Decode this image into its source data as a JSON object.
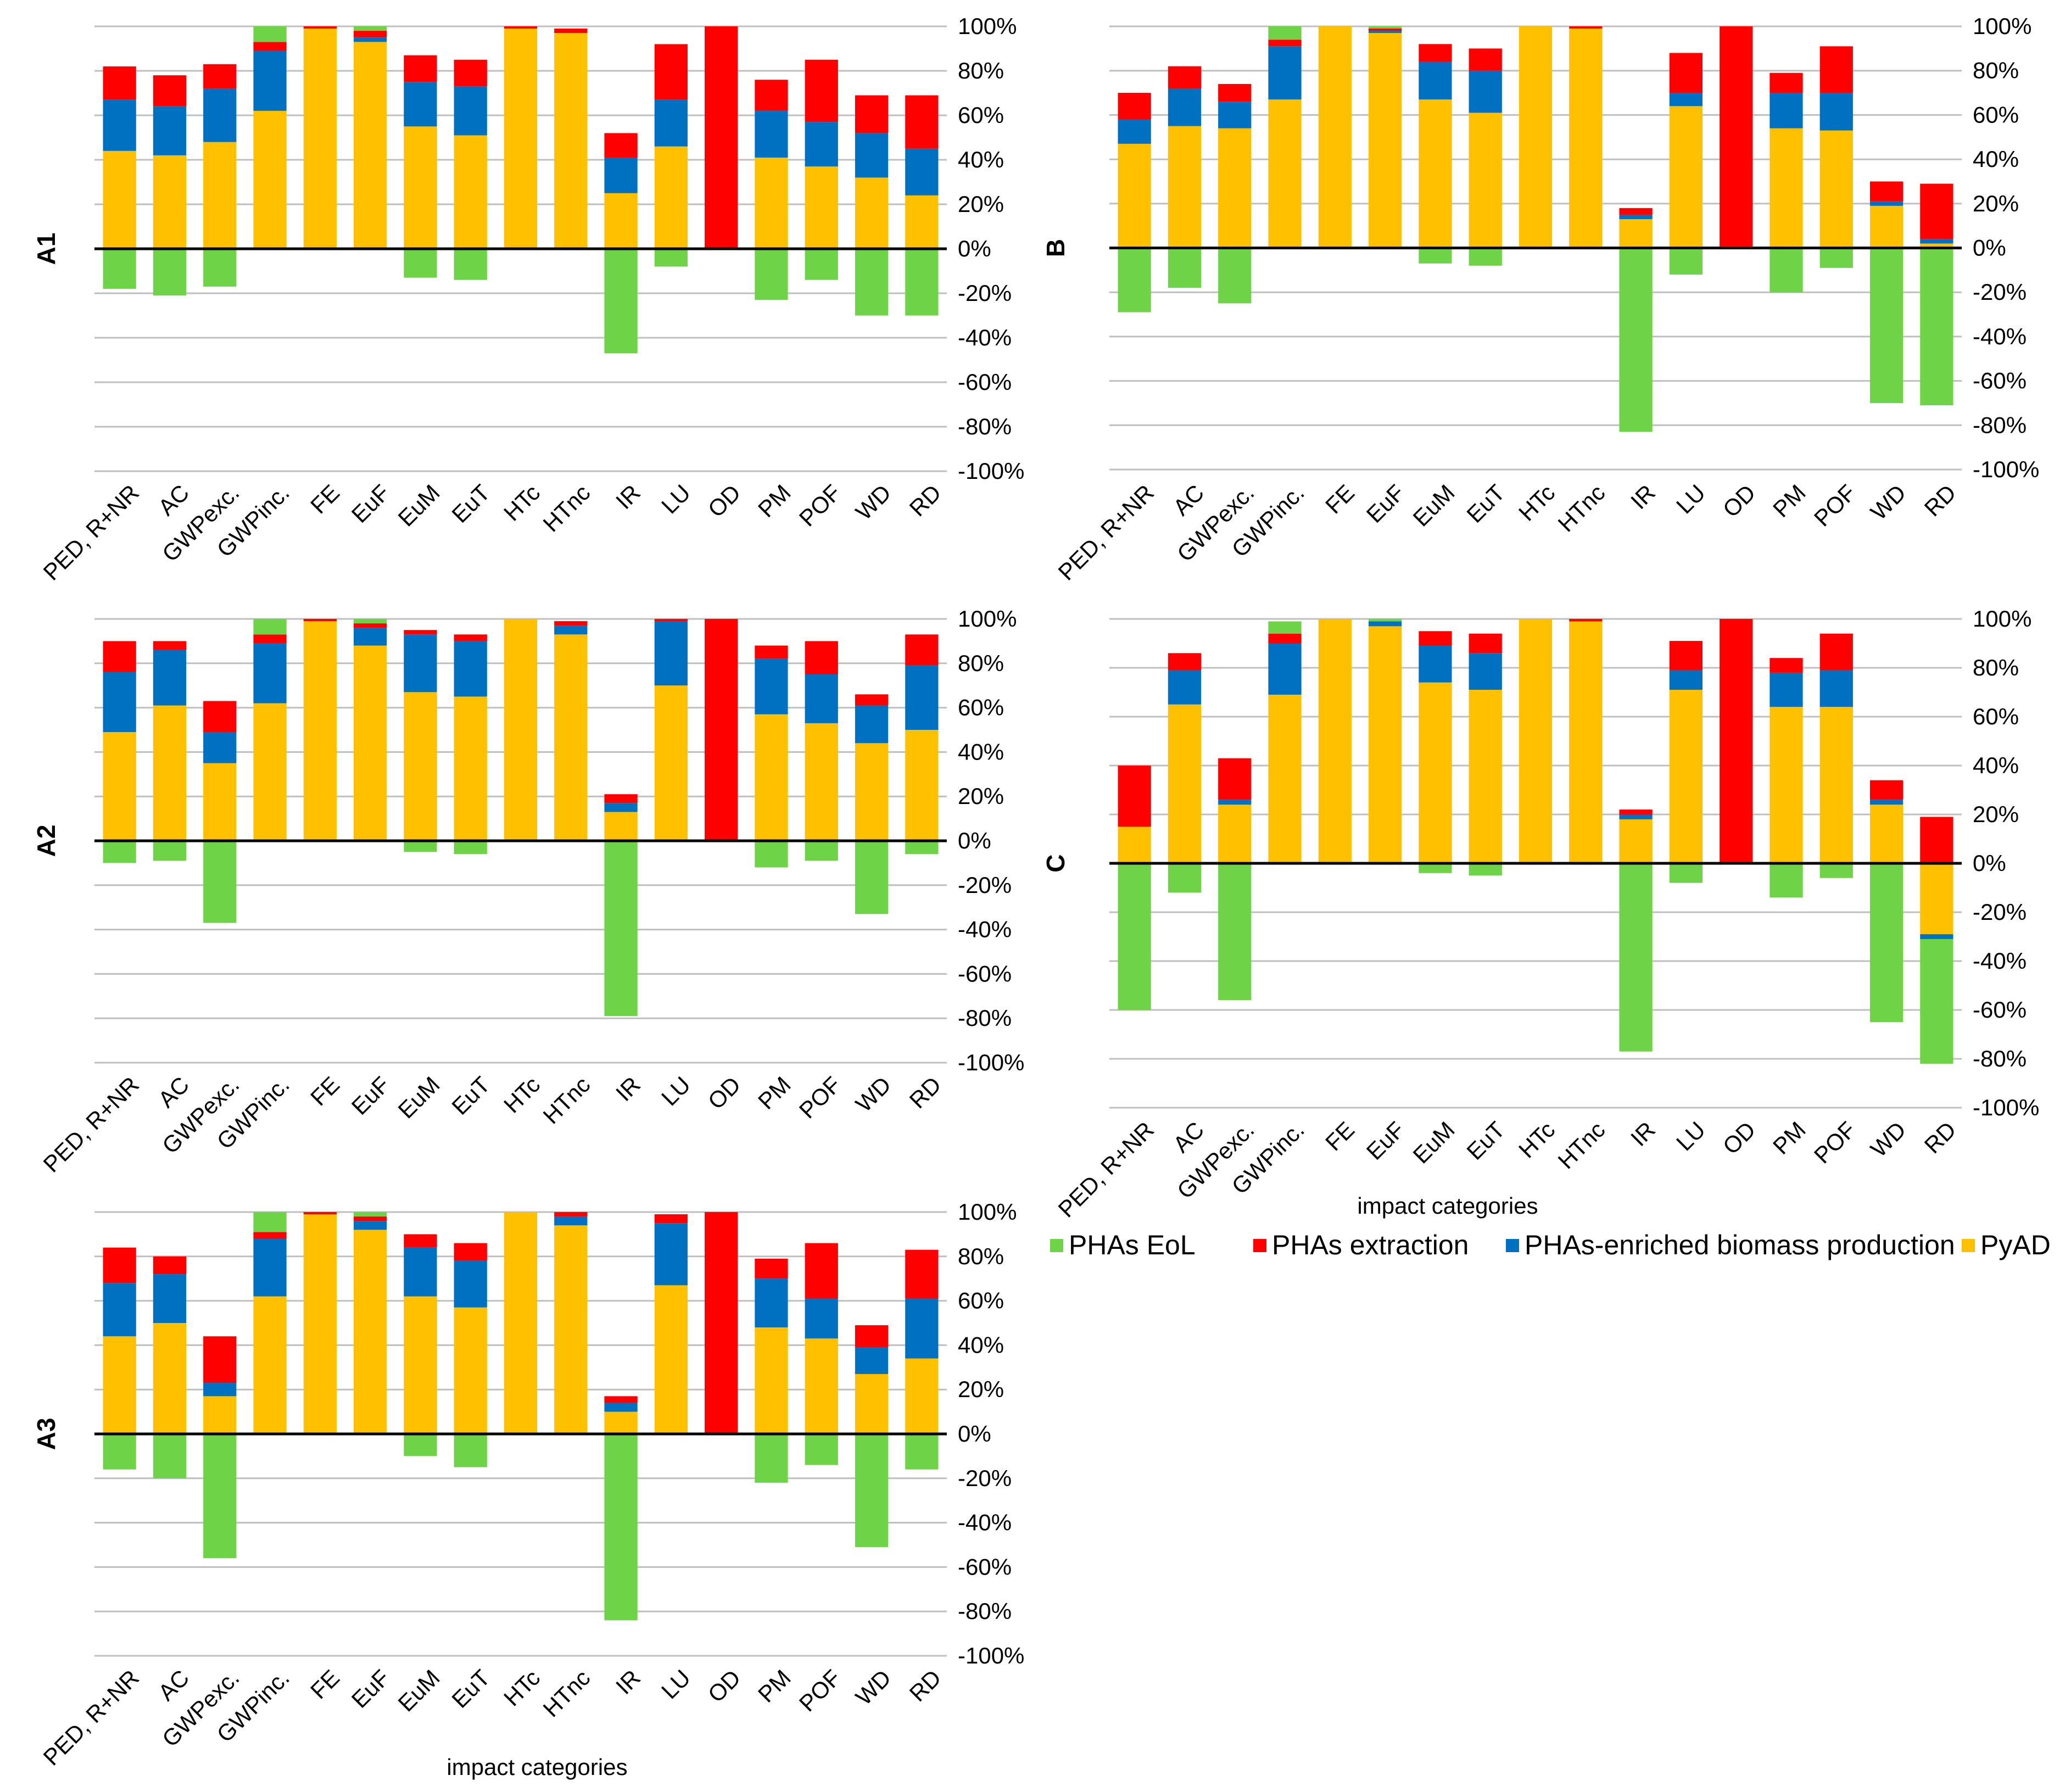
{
  "colors": {
    "PHAs EoL": "#6ed346",
    "PHAs extraction": "#ff0000",
    "PHAs-enriched biomass production": "#0070c0",
    "PyAD": "#ffc000",
    "grid": "#bfbfbf",
    "baseline": "#000000"
  },
  "legend": {
    "items": [
      "PHAs EoL",
      "PHAs extraction",
      "PHAs-enriched biomass production",
      "PyAD"
    ]
  },
  "chart_data": [
    {
      "type": "bar",
      "stacked": true,
      "panel": "A1",
      "xlabel": "",
      "ylabel": "",
      "ylim": [
        -100,
        100
      ],
      "yticks": [
        "100%",
        "80%",
        "60%",
        "40%",
        "20%",
        "0%",
        "-20%",
        "-40%",
        "-60%",
        "-80%",
        "-100%"
      ],
      "grid": true,
      "categories": [
        "PED, R+NR",
        "AC",
        "GWPexc.",
        "GWPinc.",
        "FE",
        "EuF",
        "EuM",
        "EuT",
        "HTc",
        "HTnc",
        "IR",
        "LU",
        "OD",
        "PM",
        "POF",
        "WD",
        "RD"
      ],
      "series": [
        {
          "name": "PyAD",
          "values": [
            44,
            42,
            48,
            62,
            99,
            93,
            55,
            51,
            99,
            97,
            25,
            46,
            0,
            41,
            37,
            32,
            24
          ]
        },
        {
          "name": "PHAs-enriched biomass production",
          "values": [
            23,
            22,
            24,
            27,
            0,
            2,
            20,
            22,
            0,
            0,
            16,
            21,
            0,
            21,
            20,
            20,
            21
          ]
        },
        {
          "name": "PHAs extraction",
          "values": [
            15,
            14,
            11,
            4,
            1,
            3,
            12,
            12,
            1,
            2,
            11,
            25,
            100,
            14,
            28,
            17,
            24
          ]
        },
        {
          "name": "PHAs EoL",
          "values": [
            -18,
            -21,
            -17,
            7,
            0,
            2,
            -13,
            -14,
            0,
            0,
            -47,
            -8,
            0,
            -23,
            -14,
            -30,
            -30
          ]
        }
      ]
    },
    {
      "type": "bar",
      "stacked": true,
      "panel": "B",
      "xlabel": "",
      "ylabel": "",
      "ylim": [
        -100,
        100
      ],
      "yticks": [
        "100%",
        "80%",
        "60%",
        "40%",
        "20%",
        "0%",
        "-20%",
        "-40%",
        "-60%",
        "-80%",
        "-100%"
      ],
      "grid": true,
      "categories": [
        "PED, R+NR",
        "AC",
        "GWPexc.",
        "GWPinc.",
        "FE",
        "EuF",
        "EuM",
        "EuT",
        "HTc",
        "HTnc",
        "IR",
        "LU",
        "OD",
        "PM",
        "POF",
        "WD",
        "RD"
      ],
      "series": [
        {
          "name": "PyAD",
          "values": [
            47,
            55,
            54,
            67,
            100,
            97,
            67,
            61,
            100,
            99,
            13,
            64,
            0,
            54,
            53,
            19,
            2
          ]
        },
        {
          "name": "PHAs-enriched biomass production",
          "values": [
            11,
            17,
            12,
            24,
            0,
            1,
            17,
            19,
            0,
            0,
            2,
            6,
            0,
            16,
            17,
            2,
            2
          ]
        },
        {
          "name": "PHAs extraction",
          "values": [
            12,
            10,
            8,
            3,
            0,
            1,
            8,
            10,
            0,
            1,
            3,
            18,
            100,
            9,
            21,
            9,
            25
          ]
        },
        {
          "name": "PHAs EoL",
          "values": [
            -29,
            -18,
            -25,
            6,
            0,
            1,
            -7,
            -8,
            0,
            0,
            -83,
            -12,
            0,
            -20,
            -9,
            -70,
            -71
          ]
        }
      ]
    },
    {
      "type": "bar",
      "stacked": true,
      "panel": "A2",
      "xlabel": "",
      "ylabel": "",
      "ylim": [
        -100,
        100
      ],
      "yticks": [
        "100%",
        "80%",
        "60%",
        "40%",
        "20%",
        "0%",
        "-20%",
        "-40%",
        "-60%",
        "-80%",
        "-100%"
      ],
      "grid": true,
      "categories": [
        "PED, R+NR",
        "AC",
        "GWPexc.",
        "GWPinc.",
        "FE",
        "EuF",
        "EuM",
        "EuT",
        "HTc",
        "HTnc",
        "IR",
        "LU",
        "OD",
        "PM",
        "POF",
        "WD",
        "RD"
      ],
      "series": [
        {
          "name": "PyAD",
          "values": [
            49,
            61,
            35,
            62,
            99,
            88,
            67,
            65,
            100,
            93,
            13,
            70,
            0,
            57,
            53,
            44,
            50
          ]
        },
        {
          "name": "PHAs-enriched biomass production",
          "values": [
            27,
            25,
            14,
            27,
            0,
            8,
            26,
            25,
            0,
            4,
            4,
            29,
            0,
            25,
            22,
            17,
            29
          ]
        },
        {
          "name": "PHAs extraction",
          "values": [
            14,
            4,
            14,
            4,
            1,
            2,
            2,
            3,
            0,
            2,
            4,
            1,
            100,
            6,
            15,
            5,
            14
          ]
        },
        {
          "name": "PHAs EoL",
          "values": [
            -10,
            -9,
            -37,
            7,
            0,
            2,
            -5,
            -6,
            0,
            0,
            -79,
            0,
            0,
            -12,
            -9,
            -33,
            -6
          ]
        }
      ]
    },
    {
      "type": "bar",
      "stacked": true,
      "panel": "C",
      "xlabel": "impact categories",
      "ylabel": "",
      "ylim": [
        -100,
        100
      ],
      "yticks": [
        "100%",
        "80%",
        "60%",
        "40%",
        "20%",
        "0%",
        "-20%",
        "-40%",
        "-60%",
        "-80%",
        "-100%"
      ],
      "grid": true,
      "categories": [
        "PED, R+NR",
        "AC",
        "GWPexc.",
        "GWPinc.",
        "FE",
        "EuF",
        "EuM",
        "EuT",
        "HTc",
        "HTnc",
        "IR",
        "LU",
        "OD",
        "PM",
        "POF",
        "WD",
        "RD"
      ],
      "series": [
        {
          "name": "PyAD",
          "values": [
            15,
            65,
            24,
            69,
            100,
            97,
            74,
            71,
            100,
            99,
            18,
            71,
            0,
            64,
            64,
            24,
            -29
          ]
        },
        {
          "name": "PHAs-enriched biomass production",
          "values": [
            0,
            14,
            2,
            21,
            0,
            2,
            15,
            15,
            0,
            0,
            2,
            8,
            0,
            14,
            15,
            2,
            -2
          ]
        },
        {
          "name": "PHAs extraction",
          "values": [
            25,
            7,
            17,
            4,
            0,
            0,
            6,
            8,
            0,
            1,
            2,
            12,
            100,
            6,
            15,
            8,
            19
          ]
        },
        {
          "name": "PHAs EoL",
          "values": [
            -60,
            -12,
            -56,
            5,
            0,
            1,
            -4,
            -5,
            0,
            0,
            -77,
            -8,
            0,
            -14,
            -6,
            -65,
            -51
          ]
        }
      ]
    },
    {
      "type": "bar",
      "stacked": true,
      "panel": "A3",
      "xlabel": "impact categories",
      "ylabel": "",
      "ylim": [
        -100,
        100
      ],
      "yticks": [
        "100%",
        "80%",
        "60%",
        "40%",
        "20%",
        "0%",
        "-20%",
        "-40%",
        "-60%",
        "-80%",
        "-100%"
      ],
      "grid": true,
      "categories": [
        "PED, R+NR",
        "AC",
        "GWPexc.",
        "GWPinc.",
        "FE",
        "EuF",
        "EuM",
        "EuT",
        "HTc",
        "HTnc",
        "IR",
        "LU",
        "OD",
        "PM",
        "POF",
        "WD",
        "RD"
      ],
      "series": [
        {
          "name": "PyAD",
          "values": [
            44,
            50,
            17,
            62,
            99,
            92,
            62,
            57,
            100,
            94,
            10,
            67,
            0,
            48,
            43,
            27,
            34
          ]
        },
        {
          "name": "PHAs-enriched biomass production",
          "values": [
            24,
            22,
            6,
            26,
            0,
            4,
            22,
            21,
            0,
            4,
            4,
            28,
            0,
            22,
            18,
            12,
            27
          ]
        },
        {
          "name": "PHAs extraction",
          "values": [
            16,
            8,
            21,
            3,
            1,
            2,
            6,
            8,
            0,
            2,
            3,
            4,
            100,
            9,
            25,
            10,
            22
          ]
        },
        {
          "name": "PHAs EoL",
          "values": [
            -16,
            -20,
            -56,
            9,
            0,
            2,
            -10,
            -15,
            0,
            0,
            -84,
            0,
            0,
            -22,
            -14,
            -51,
            -16
          ]
        }
      ]
    }
  ]
}
